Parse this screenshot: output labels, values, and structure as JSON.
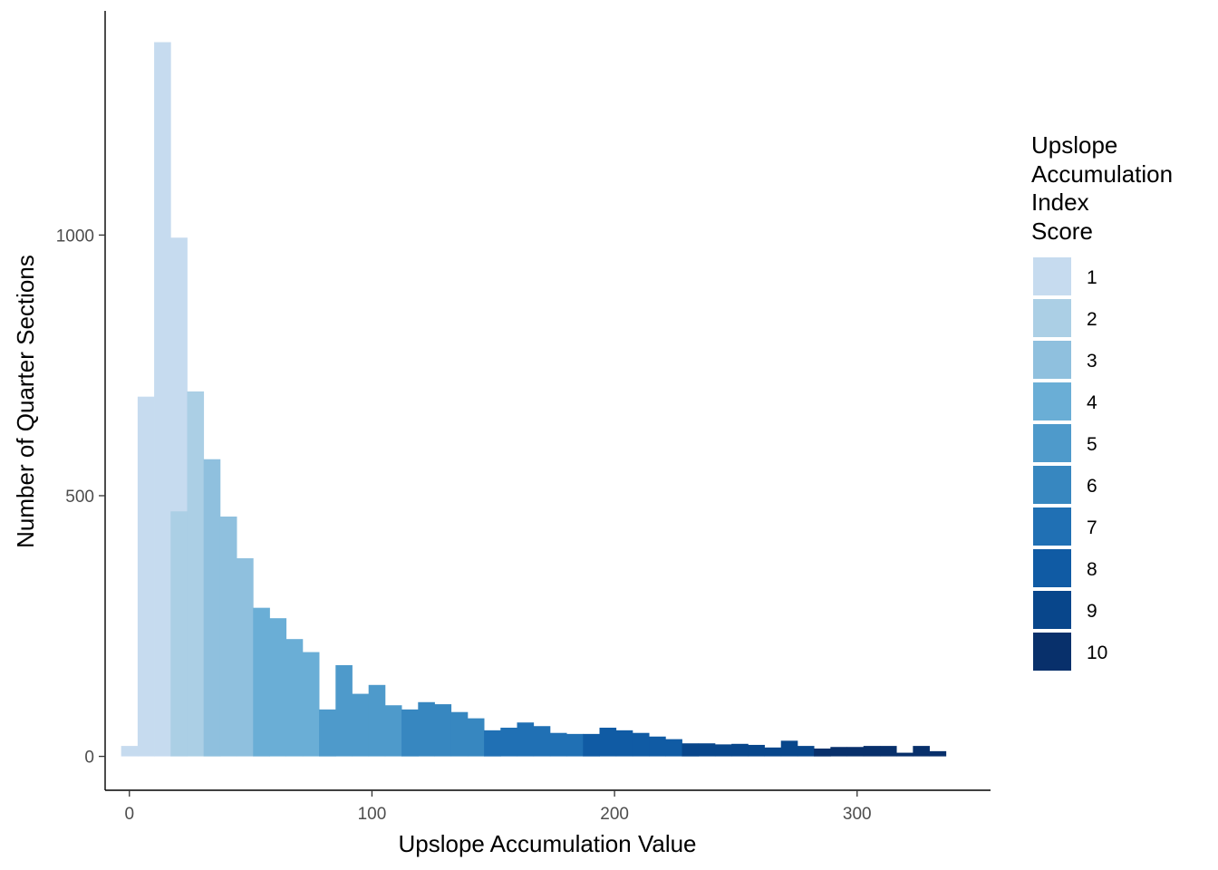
{
  "chart_data": {
    "type": "bar",
    "subtype": "stacked histogram",
    "title": "",
    "xlabel": "Upslope Accumulation Value",
    "ylabel": "Number of Quarter Sections",
    "xlim": [
      -10,
      355
    ],
    "ylim": [
      -65,
      1430
    ],
    "x_ticks": [
      0,
      100,
      200,
      300
    ],
    "y_ticks": [
      0,
      500,
      1000
    ],
    "grid": false,
    "bin_width": 6.8,
    "legend": {
      "title_lines": [
        "Upslope",
        "Accumulation",
        "Index",
        "Score"
      ],
      "position": "right",
      "entries": [
        {
          "label": "1",
          "color": "#c6dbef"
        },
        {
          "label": "2",
          "color": "#abcfe5"
        },
        {
          "label": "3",
          "color": "#8fc0de"
        },
        {
          "label": "4",
          "color": "#6aaed6"
        },
        {
          "label": "5",
          "color": "#4e9acb"
        },
        {
          "label": "6",
          "color": "#3787c0"
        },
        {
          "label": "7",
          "color": "#2070b4"
        },
        {
          "label": "8",
          "color": "#105ba4"
        },
        {
          "label": "9",
          "color": "#08468b"
        },
        {
          "label": "10",
          "color": "#08306b"
        }
      ]
    },
    "series": [
      {
        "score": "1",
        "color": "#c6dbef",
        "bins": [
          [
            -3.4,
            20
          ],
          [
            3.4,
            690
          ],
          [
            10.2,
            1370
          ],
          [
            17.0,
            995
          ]
        ]
      },
      {
        "score": "2",
        "color": "#abcfe5",
        "bins": [
          [
            17.0,
            470
          ],
          [
            23.8,
            700
          ],
          [
            30.6,
            65
          ]
        ]
      },
      {
        "score": "3",
        "color": "#8fc0de",
        "bins": [
          [
            30.6,
            570
          ],
          [
            37.4,
            460
          ],
          [
            44.2,
            380
          ],
          [
            51.0,
            35
          ]
        ]
      },
      {
        "score": "4",
        "color": "#6aaed6",
        "bins": [
          [
            51.0,
            285
          ],
          [
            57.8,
            265
          ],
          [
            64.6,
            225
          ],
          [
            71.4,
            200
          ],
          [
            78.2,
            73
          ]
        ]
      },
      {
        "score": "5",
        "color": "#4e9acb",
        "bins": [
          [
            78.2,
            90
          ],
          [
            85.0,
            175
          ],
          [
            91.8,
            120
          ],
          [
            98.6,
            137
          ],
          [
            105.4,
            98
          ],
          [
            112.2,
            5
          ]
        ]
      },
      {
        "score": "6",
        "color": "#3787c0",
        "bins": [
          [
            112.2,
            90
          ],
          [
            119.0,
            104
          ],
          [
            125.8,
            100
          ],
          [
            132.6,
            85
          ],
          [
            139.4,
            73
          ],
          [
            146.2,
            5
          ]
        ]
      },
      {
        "score": "7",
        "color": "#2070b4",
        "bins": [
          [
            146.2,
            50
          ],
          [
            153.0,
            55
          ],
          [
            159.8,
            65
          ],
          [
            166.6,
            58
          ],
          [
            173.4,
            45
          ],
          [
            180.2,
            43
          ],
          [
            187.0,
            8
          ]
        ]
      },
      {
        "score": "8",
        "color": "#105ba4",
        "bins": [
          [
            187.0,
            43
          ],
          [
            193.8,
            55
          ],
          [
            200.6,
            50
          ],
          [
            207.4,
            45
          ],
          [
            214.2,
            38
          ],
          [
            221.0,
            33
          ],
          [
            227.8,
            5
          ]
        ]
      },
      {
        "score": "9",
        "color": "#08468b",
        "bins": [
          [
            227.8,
            25
          ],
          [
            234.6,
            25
          ],
          [
            241.4,
            23
          ],
          [
            248.2,
            24
          ],
          [
            255.0,
            22
          ],
          [
            261.8,
            17
          ],
          [
            268.6,
            30
          ],
          [
            275.4,
            20
          ],
          [
            282.2,
            5
          ]
        ]
      },
      {
        "score": "10",
        "color": "#08306b",
        "bins": [
          [
            282.2,
            15
          ],
          [
            289.0,
            18
          ],
          [
            295.8,
            18
          ],
          [
            302.6,
            20
          ],
          [
            309.4,
            20
          ],
          [
            316.2,
            7
          ],
          [
            323.0,
            20
          ],
          [
            329.8,
            10
          ]
        ]
      }
    ]
  }
}
